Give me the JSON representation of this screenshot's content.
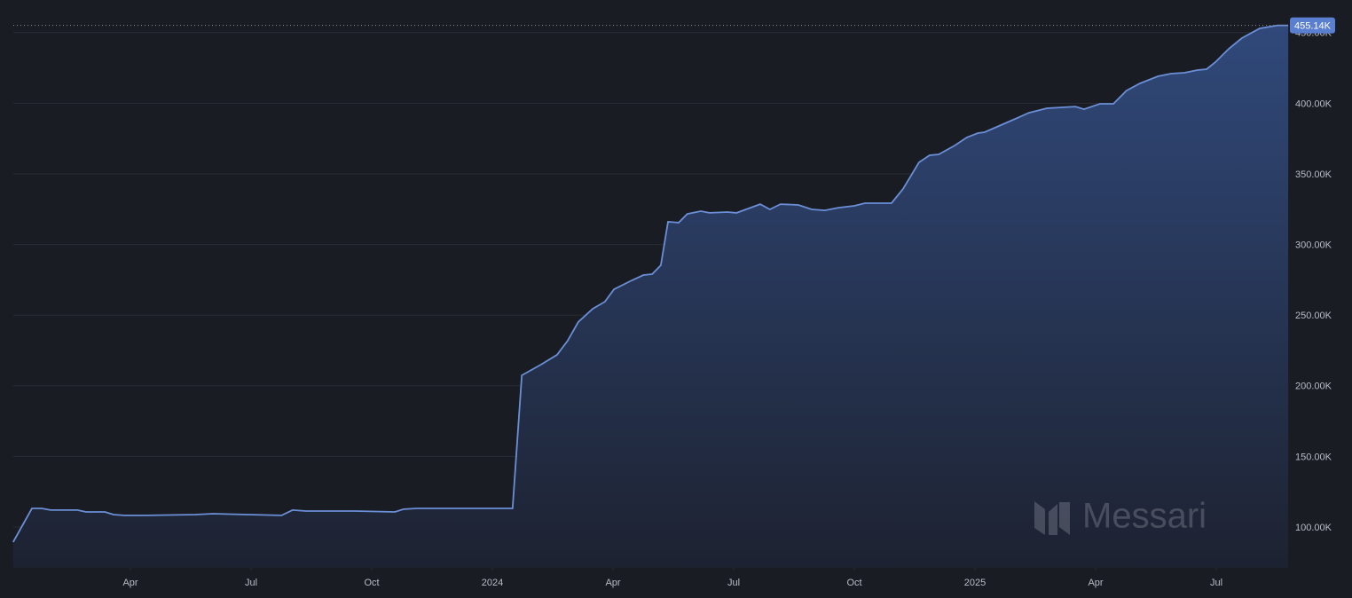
{
  "chart_data": {
    "type": "area",
    "watermark": "Messari",
    "color": "#6b8fd6",
    "series": [
      {
        "color": "#6b8fd6",
        "x": [
          2023.007,
          2023.046,
          2023.066,
          2023.085,
          2023.14,
          2023.158,
          2023.197,
          2023.215,
          2023.237,
          2023.283,
          2023.384,
          2023.421,
          2023.563,
          2023.586,
          2023.614,
          2023.715,
          2023.798,
          2023.816,
          2023.844,
          2024.042,
          2024.061,
          2024.101,
          2024.134,
          2024.156,
          2024.178,
          2024.208,
          2024.233,
          2024.252,
          2024.289,
          2024.313,
          2024.331,
          2024.349,
          2024.364,
          2024.386,
          2024.404,
          2024.432,
          2024.45,
          2024.487,
          2024.506,
          2024.555,
          2024.575,
          2024.597,
          2024.634,
          2024.662,
          2024.689,
          2024.717,
          2024.75,
          2024.772,
          2024.827,
          2024.851,
          2024.884,
          2024.906,
          2024.925,
          2024.958,
          2024.983,
          2025.006,
          2025.02,
          2025.075,
          2025.112,
          2025.149,
          2025.208,
          2025.226,
          2025.259,
          2025.287,
          2025.314,
          2025.342,
          2025.379,
          2025.406,
          2025.434,
          2025.461,
          2025.48,
          2025.498,
          2025.526,
          2025.553,
          2025.59,
          2025.627,
          2025.649
        ],
        "values": [
          89300,
          113200,
          113200,
          112000,
          112000,
          110700,
          110700,
          108800,
          108200,
          108200,
          108800,
          109400,
          108200,
          112000,
          111300,
          111300,
          110700,
          112600,
          113200,
          113200,
          207400,
          215000,
          221900,
          231900,
          245100,
          254500,
          259500,
          268300,
          274600,
          278400,
          279000,
          285300,
          316100,
          315500,
          321700,
          323600,
          322400,
          323000,
          322400,
          328600,
          324900,
          328600,
          328000,
          324900,
          324200,
          326100,
          327400,
          329300,
          329300,
          339300,
          358200,
          363200,
          363800,
          370100,
          375800,
          378900,
          379500,
          387700,
          393300,
          396500,
          397700,
          395800,
          399600,
          399600,
          409000,
          414100,
          419100,
          421000,
          421600,
          423500,
          424100,
          429100,
          438600,
          446100,
          453000,
          455140,
          455140
        ]
      }
    ],
    "current_value": {
      "value": 455140,
      "label": "455.14K"
    },
    "xlim": [
      2023,
      2025.65
    ],
    "xticks": [
      {
        "value": 2023.25,
        "label": "Apr"
      },
      {
        "value": 2023.5,
        "label": "Jul"
      },
      {
        "value": 2023.75,
        "label": "Oct"
      },
      2024,
      {
        "value": 2024.25,
        "label": "Apr"
      },
      {
        "value": 2024.5,
        "label": "Jul"
      },
      {
        "value": 2024.75,
        "label": "Oct"
      },
      2025,
      {
        "value": 2025.25,
        "label": "Apr"
      },
      {
        "value": 2025.5,
        "label": "Jul"
      }
    ],
    "ylim": [
      71100,
      463700
    ],
    "yticks": [
      {
        "value": 100000,
        "label": "100.00K"
      },
      {
        "value": 150000,
        "label": "150.00K"
      },
      {
        "value": 200000,
        "label": "200.00K"
      },
      {
        "value": 250000,
        "label": "250.00K"
      },
      {
        "value": 300000,
        "label": "300.00K"
      },
      {
        "value": 350000,
        "label": "350.00K"
      },
      {
        "value": 400000,
        "label": "400.00K"
      },
      {
        "value": 450000,
        "label": "450.00K"
      }
    ],
    "grid": true
  }
}
